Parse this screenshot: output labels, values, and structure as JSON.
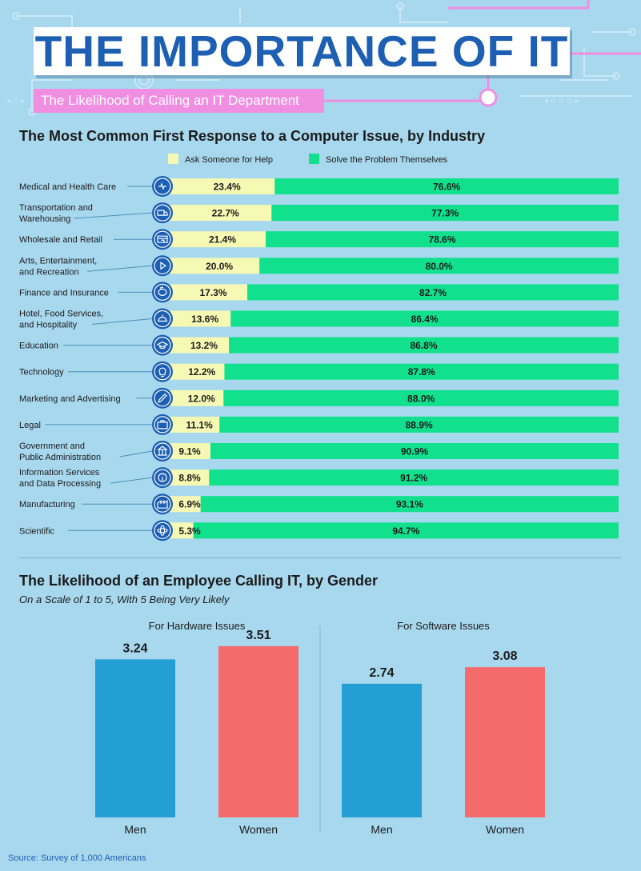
{
  "header": {
    "title": "THE IMPORTANCE OF IT",
    "subtitle": "The Likelihood of Calling an IT Department"
  },
  "colors": {
    "ask": "#f6f9b4",
    "solve": "#11e08d",
    "men": "#249fd4",
    "women": "#f56a6a",
    "title_blue": "#1d5fb2",
    "pink": "#f08ee2"
  },
  "chart_data": [
    {
      "type": "bar",
      "orientation": "horizontal",
      "stacked": true,
      "title": "The Most Common First Response to a Computer Issue, by Industry",
      "legend": [
        "Ask Someone for Help",
        "Solve the Problem Themselves"
      ],
      "categories": [
        "Medical and Health Care",
        "Transportation and\nWarehousing",
        "Wholesale and Retail",
        "Arts, Entertainment,\nand Recreation",
        "Finance and Insurance",
        "Hotel, Food Services,\nand Hospitality",
        "Education",
        "Technology",
        "Marketing and Advertising",
        "Legal",
        "Government and\nPublic Administration",
        "Information Services\nand Data Processing",
        "Manufacturing",
        "Scientific"
      ],
      "icons": [
        "heart-monitor-icon",
        "truck-icon",
        "storefront-icon",
        "play-icon",
        "piggy-bank-icon",
        "cloche-icon",
        "graduation-cap-icon",
        "lightbulb-icon",
        "pencil-icon",
        "briefcase-icon",
        "government-building-icon",
        "info-icon",
        "factory-icon",
        "atom-icon"
      ],
      "series": [
        {
          "name": "Ask Someone for Help",
          "values": [
            23.4,
            22.7,
            21.4,
            20.0,
            17.3,
            13.6,
            13.2,
            12.2,
            12.0,
            11.1,
            9.1,
            8.8,
            6.9,
            5.3
          ]
        },
        {
          "name": "Solve the Problem Themselves",
          "values": [
            76.6,
            77.3,
            78.6,
            80.0,
            82.7,
            86.4,
            86.8,
            87.8,
            88.0,
            88.9,
            90.9,
            91.2,
            93.1,
            94.7
          ]
        }
      ],
      "xlim": [
        0,
        100
      ],
      "value_suffix": "%"
    },
    {
      "type": "bar",
      "title": "The Likelihood of an Employee Calling IT, by Gender",
      "subtitle": "On a Scale of 1 to 5, With 5 Being Very Likely",
      "groups": [
        {
          "name": "For Hardware Issues",
          "categories": [
            "Men",
            "Women"
          ],
          "values": [
            3.24,
            3.51
          ]
        },
        {
          "name": "For Software Issues",
          "categories": [
            "Men",
            "Women"
          ],
          "values": [
            2.74,
            3.08
          ]
        }
      ],
      "ylim": [
        0,
        5
      ]
    }
  ],
  "source": "Source: Survey of 1,000 Americans"
}
